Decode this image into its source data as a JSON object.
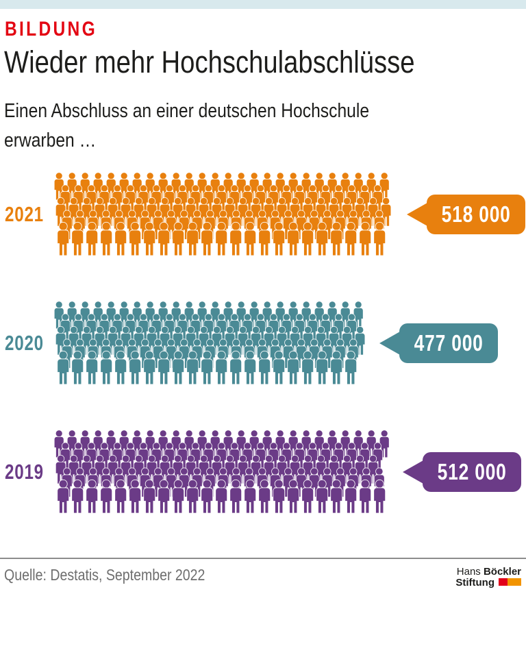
{
  "page": {
    "top_bar_color": "#d8e9ed",
    "background": "#ffffff"
  },
  "header": {
    "kicker": "BILDUNG",
    "kicker_color": "#e30613",
    "title": "Wieder mehr Hochschulabschlüsse",
    "subtitle_line1": "Einen Abschluss an einer deutschen Hochschule",
    "subtitle_line2": "erwarben …"
  },
  "chart_data": {
    "type": "pictogram-bar",
    "icon": "person",
    "title": "Wieder mehr Hochschulabschlüsse",
    "subtitle": "Einen Abschluss an einer deutschen Hochschule erwarben …",
    "categories": [
      "2021",
      "2020",
      "2019"
    ],
    "values": [
      518000,
      477000,
      512000
    ],
    "value_labels": [
      "518 000",
      "477 000",
      "512 000"
    ],
    "colors": [
      "#e8800e",
      "#4a8a95",
      "#6b3b87"
    ],
    "legend": false,
    "value_axis": "length of crowd proportional to value",
    "source": "Quelle: Destatis, September 2022"
  },
  "footer": {
    "source": "Quelle: Destatis, September 2022",
    "logo": {
      "line1_light": "Hans",
      "line1_bold": "Böckler",
      "line2_bold": "Stiftung",
      "red_color": "#e2001a",
      "orange_color": "#f29400"
    }
  }
}
